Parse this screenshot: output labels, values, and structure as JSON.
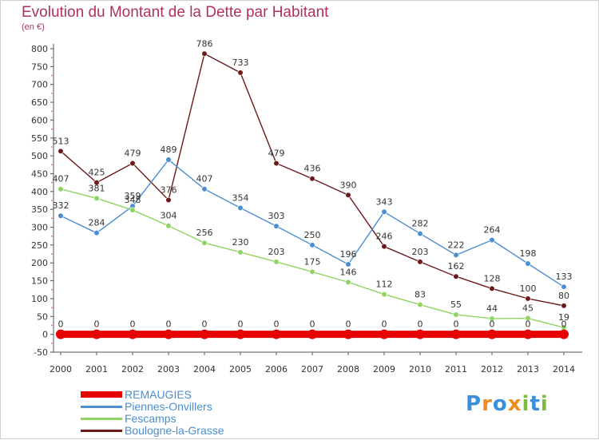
{
  "title": "Evolution du Montant de la Dette par Habitant",
  "unit_label": "(en €)",
  "logo": {
    "letters": [
      "P",
      "r",
      "o",
      "x",
      "i",
      "t",
      "i"
    ],
    "colors": [
      "#3b8fd9",
      "#f08c1a",
      "#3b8fd9",
      "#f08c1a",
      "#7dbb3c",
      "#3b8fd9",
      "#7dbb3c"
    ]
  },
  "chart_data": {
    "type": "line",
    "title": "Evolution du Montant de la Dette par Habitant",
    "ylabel": "(en €)",
    "xlabel": "",
    "x": [
      "2000",
      "2001",
      "2002",
      "2003",
      "2004",
      "2005",
      "2006",
      "2007",
      "2008",
      "2009",
      "2010",
      "2011",
      "2012",
      "2013",
      "2014"
    ],
    "ylim": [
      -50,
      800
    ],
    "yticks": [
      -50,
      0,
      50,
      100,
      150,
      200,
      250,
      300,
      350,
      400,
      450,
      500,
      550,
      600,
      650,
      700,
      750,
      800
    ],
    "grid": false,
    "legend_position": "bottom-left",
    "series": [
      {
        "name": "Boulogne-la-Grasse",
        "color": "#6b1a1a",
        "values": [
          513,
          425,
          479,
          376,
          786,
          733,
          479,
          436,
          390,
          246,
          203,
          162,
          128,
          100,
          80
        ]
      },
      {
        "name": "Piennes-Onvillers",
        "color": "#4a8ed0",
        "values": [
          332,
          284,
          359,
          489,
          407,
          354,
          303,
          250,
          196,
          343,
          282,
          222,
          264,
          198,
          133
        ]
      },
      {
        "name": "Fescamps",
        "color": "#8fd460",
        "values": [
          407,
          381,
          348,
          304,
          256,
          230,
          203,
          175,
          146,
          112,
          83,
          55,
          44,
          45,
          19
        ]
      },
      {
        "name": "REMAUGIES",
        "color": "#e60000",
        "values": [
          0,
          0,
          0,
          0,
          0,
          0,
          0,
          0,
          0,
          0,
          0,
          0,
          0,
          0,
          0
        ]
      }
    ],
    "legend_order": [
      "REMAUGIES",
      "Piennes-Onvillers",
      "Fescamps",
      "Boulogne-la-Grasse"
    ]
  }
}
